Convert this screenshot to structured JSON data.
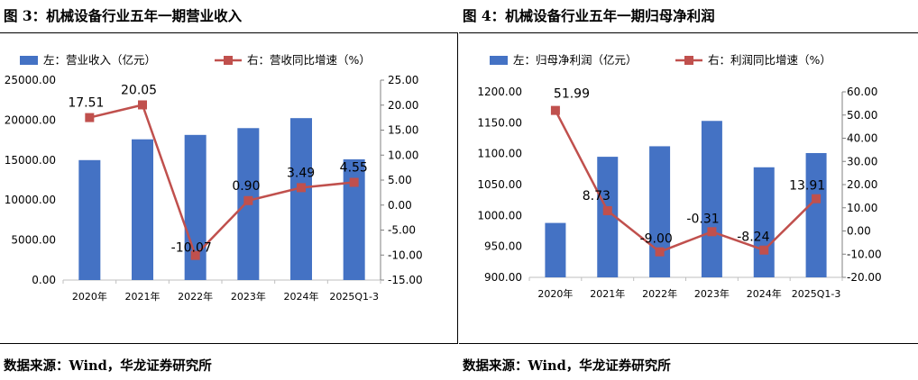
{
  "figures": [
    {
      "title": "图 3：机械设备行业五年一期营业收入",
      "source": "数据来源：Wind，华龙证券研究所"
    },
    {
      "title": "图 4：机械设备行业五年一期归母净利润",
      "source": "数据来源：Wind，华龙证券研究所"
    }
  ],
  "chart_data": [
    {
      "type": "bar",
      "categories": [
        "2020年",
        "2021年",
        "2022年",
        "2023年",
        "2024年",
        "2025Q1-3"
      ],
      "series": [
        {
          "name": "左：营业收入（亿元）",
          "type": "bar",
          "axis": "left",
          "color": "#4472C4",
          "values": [
            15000,
            17600,
            18150,
            19000,
            20250,
            15100
          ]
        },
        {
          "name": "右：营收同比增速（%）",
          "type": "line",
          "axis": "right",
          "color": "#C0504D",
          "values": [
            17.51,
            20.05,
            -10.07,
            0.9,
            3.49,
            4.55
          ]
        }
      ],
      "data_labels": [
        "17.51",
        "20.05",
        "-10.07",
        "0.90",
        "3.49",
        "4.55"
      ],
      "ylim": [
        0,
        25000
      ],
      "y_ticks": [
        "0.00",
        "5000.00",
        "10000.00",
        "15000.00",
        "20000.00",
        "25000.00"
      ],
      "y2lim": [
        -15,
        25
      ],
      "y2_ticks": [
        "-15.00",
        "-10.00",
        "-5.00",
        "0.00",
        "5.00",
        "10.00",
        "15.00",
        "20.00",
        "25.00"
      ],
      "legend": "top",
      "grid": false
    },
    {
      "type": "bar",
      "categories": [
        "2020年",
        "2021年",
        "2022年",
        "2023年",
        "2024年",
        "2025Q1-3"
      ],
      "series": [
        {
          "name": "左：归母净利润（亿元）",
          "type": "bar",
          "axis": "left",
          "color": "#4472C4",
          "values": [
            988,
            1095,
            1112,
            1153,
            1078,
            1101
          ]
        },
        {
          "name": "右：利润同比增速（%）",
          "type": "line",
          "axis": "right",
          "color": "#C0504D",
          "values": [
            51.99,
            8.73,
            -9.0,
            -0.31,
            -8.24,
            13.91
          ]
        }
      ],
      "data_labels": [
        "51.99",
        "8.73",
        "-9.00",
        "-0.31",
        "-8.24",
        "13.91"
      ],
      "ylim": [
        900,
        1200
      ],
      "y_ticks": [
        "900.00",
        "950.00",
        "1000.00",
        "1050.00",
        "1100.00",
        "1150.00",
        "1200.00"
      ],
      "y2lim": [
        -20,
        60
      ],
      "y2_ticks": [
        "-20.00",
        "-10.00",
        "0.00",
        "10.00",
        "20.00",
        "30.00",
        "40.00",
        "50.00",
        "60.00"
      ],
      "legend": "top",
      "grid": false
    }
  ]
}
